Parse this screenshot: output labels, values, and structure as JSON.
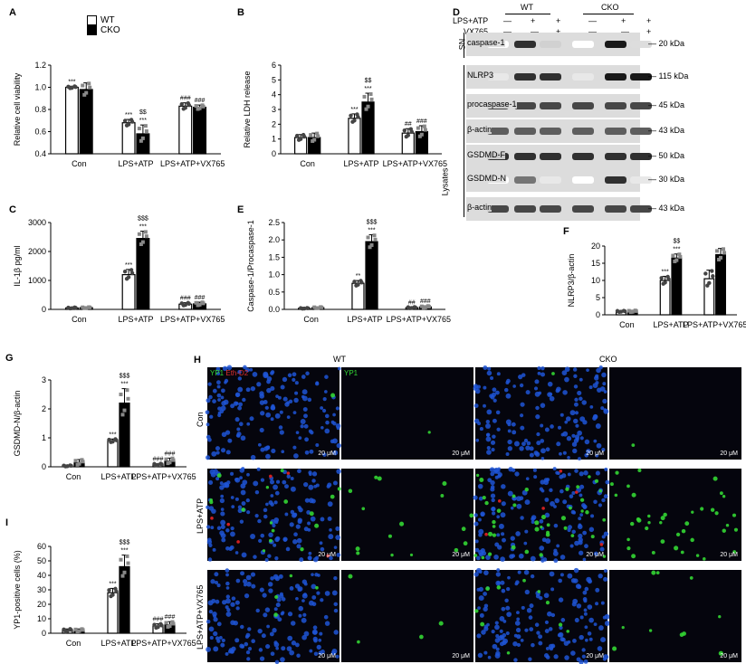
{
  "panels": {
    "A": "A",
    "B": "B",
    "C": "C",
    "D": "D",
    "E": "E",
    "F": "F",
    "G": "G",
    "H": "H",
    "I": "I"
  },
  "legend": {
    "wt": "WT",
    "cko": "CKO"
  },
  "colors": {
    "wt": "#ffffff",
    "cko": "#000000",
    "dots_wt": "#444444",
    "dots_cko": "#888888"
  },
  "chart_data": [
    {
      "id": "A",
      "type": "bar",
      "categories": [
        "Con",
        "LPS+ATP",
        "LPS+ATP+VX765"
      ],
      "series": [
        {
          "name": "WT",
          "values": [
            1.0,
            0.68,
            0.83
          ],
          "err": [
            0.01,
            0.03,
            0.03
          ]
        },
        {
          "name": "CKO",
          "values": [
            0.98,
            0.58,
            0.82
          ],
          "err": [
            0.06,
            0.08,
            0.02
          ]
        }
      ],
      "ylabel": "Relative cell viability",
      "ylim": [
        0.4,
        1.2
      ],
      "yticks": [
        "0.4",
        "0.6",
        "0.8",
        "1.0",
        "1.2"
      ],
      "annotations": [
        [
          "***",
          ""
        ],
        [
          "***",
          "$$\n***"
        ],
        [
          "###",
          "###"
        ]
      ]
    },
    {
      "id": "B",
      "type": "bar",
      "categories": [
        "Con",
        "LPS+ATP",
        "LPS+ATP+VX765"
      ],
      "series": [
        {
          "name": "WT",
          "values": [
            1.1,
            2.4,
            1.4
          ],
          "err": [
            0.2,
            0.3,
            0.3
          ]
        },
        {
          "name": "CKO",
          "values": [
            1.1,
            3.5,
            1.5
          ],
          "err": [
            0.3,
            0.6,
            0.4
          ]
        }
      ],
      "ylabel": "Relative LDH release",
      "ylim": [
        0,
        6
      ],
      "yticks": [
        "0",
        "1",
        "2",
        "3",
        "4",
        "5",
        "6"
      ],
      "annotations": [
        [
          "",
          ""
        ],
        [
          "***",
          "$$\n***"
        ],
        [
          "##",
          "###"
        ]
      ]
    },
    {
      "id": "C",
      "type": "bar",
      "categories": [
        "Con",
        "LPS+ATP",
        "LPS+ATP+VX765"
      ],
      "series": [
        {
          "name": "WT",
          "values": [
            50,
            1200,
            180
          ],
          "err": [
            20,
            180,
            50
          ]
        },
        {
          "name": "CKO",
          "values": [
            60,
            2450,
            190
          ],
          "err": [
            20,
            250,
            60
          ]
        }
      ],
      "ylabel": "IL-1β pg/ml",
      "ylim": [
        0,
        3000
      ],
      "yticks": [
        "0",
        "1000",
        "2000",
        "3000"
      ],
      "annotations": [
        [
          "",
          ""
        ],
        [
          "***",
          "$$$\n***"
        ],
        [
          "###",
          "###"
        ]
      ]
    },
    {
      "id": "E",
      "type": "bar",
      "categories": [
        "Con",
        "LPS+ATP",
        "LPS+ATP+VX765"
      ],
      "series": [
        {
          "name": "WT",
          "values": [
            0.03,
            0.75,
            0.05
          ],
          "err": [
            0.01,
            0.08,
            0.02
          ]
        },
        {
          "name": "CKO",
          "values": [
            0.05,
            1.95,
            0.07
          ],
          "err": [
            0.02,
            0.2,
            0.03
          ]
        }
      ],
      "ylabel": "Caspase-1/Procaspase-1",
      "ylim": [
        0,
        2.5
      ],
      "yticks": [
        "0.0",
        "0.5",
        "1.0",
        "1.5",
        "2.0",
        "2.5"
      ],
      "annotations": [
        [
          "",
          ""
        ],
        [
          "**",
          "$$$\n***"
        ],
        [
          "##",
          "###"
        ]
      ]
    },
    {
      "id": "F",
      "type": "bar",
      "categories": [
        "Con",
        "LPS+ATP",
        "LPS+ATP+VX765"
      ],
      "series": [
        {
          "name": "WT",
          "values": [
            1.0,
            10.0,
            10.5
          ],
          "err": [
            0.2,
            1.2,
            2.5
          ]
        },
        {
          "name": "CKO",
          "values": [
            1.0,
            16.5,
            17.5
          ],
          "err": [
            0.3,
            1.2,
            1.8
          ]
        }
      ],
      "ylabel": "NLRP3/β-actin",
      "ylim": [
        0,
        20
      ],
      "yticks": [
        "0",
        "5",
        "10",
        "15",
        "20"
      ],
      "annotations": [
        [
          "",
          ""
        ],
        [
          "***",
          "$$\n***"
        ],
        [
          "",
          ""
        ]
      ]
    },
    {
      "id": "G",
      "type": "bar",
      "categories": [
        "Con",
        "LPS+ATP",
        "LPS+ATP+VX765"
      ],
      "series": [
        {
          "name": "WT",
          "values": [
            0.03,
            0.9,
            0.08
          ],
          "err": [
            0.02,
            0.06,
            0.03
          ]
        },
        {
          "name": "CKO",
          "values": [
            0.15,
            2.2,
            0.2
          ],
          "err": [
            0.1,
            0.5,
            0.1
          ]
        }
      ],
      "ylabel": "GSDMD-N/β-actin",
      "ylim": [
        0,
        3
      ],
      "yticks": [
        "0",
        "1",
        "2",
        "3"
      ],
      "annotations": [
        [
          "",
          ""
        ],
        [
          "***",
          "$$$\n***"
        ],
        [
          "###",
          "###"
        ]
      ]
    },
    {
      "id": "I",
      "type": "bar",
      "categories": [
        "Con",
        "LPS+ATP",
        "LPS+ATP+VX765"
      ],
      "series": [
        {
          "name": "WT",
          "values": [
            2,
            28,
            5
          ],
          "err": [
            1,
            3,
            1.5
          ]
        },
        {
          "name": "CKO",
          "values": [
            2,
            46,
            6
          ],
          "err": [
            1,
            8,
            2
          ]
        }
      ],
      "ylabel": "YP1-positive cells (%)",
      "ylim": [
        0,
        60
      ],
      "yticks": [
        "0",
        "10",
        "20",
        "30",
        "40",
        "50",
        "60"
      ],
      "annotations": [
        [
          "",
          ""
        ],
        [
          "***",
          "$$$\n***"
        ],
        [
          "###",
          "###"
        ]
      ]
    }
  ],
  "blot": {
    "header_groups": [
      "WT",
      "CKO"
    ],
    "treat_rows": [
      {
        "label": "LPS+ATP",
        "marks": [
          "—",
          "+",
          "+",
          "—",
          "+",
          "+"
        ]
      },
      {
        "label": "VX765",
        "marks": [
          "—",
          "—",
          "+",
          "—",
          "—",
          "+"
        ]
      }
    ],
    "sn_label": "SN",
    "lysates_label": "Lysates",
    "bands": [
      {
        "name": "caspase-1",
        "kda": "20 kDa"
      },
      {
        "name": "NLRP3",
        "kda": "115 kDa"
      },
      {
        "name": "procaspase-1",
        "kda": "45 kDa"
      },
      {
        "name": "β-actin",
        "kda": "43 kDa"
      },
      {
        "name": "GSDMD-F",
        "kda": "50 kDa"
      },
      {
        "name": "GSDMD-N",
        "kda": "30 kDa"
      },
      {
        "name": "β-actin",
        "kda": "43 kDa"
      }
    ]
  },
  "micro": {
    "col_titles": [
      "WT",
      "CKO"
    ],
    "row_labels": [
      "Con",
      "LPS+ATP",
      "LPS+ATP+VX765"
    ],
    "stain_merge": [
      "YP1",
      "Eth-D2"
    ],
    "stain_single": "YP1",
    "scale": "20 μM"
  }
}
